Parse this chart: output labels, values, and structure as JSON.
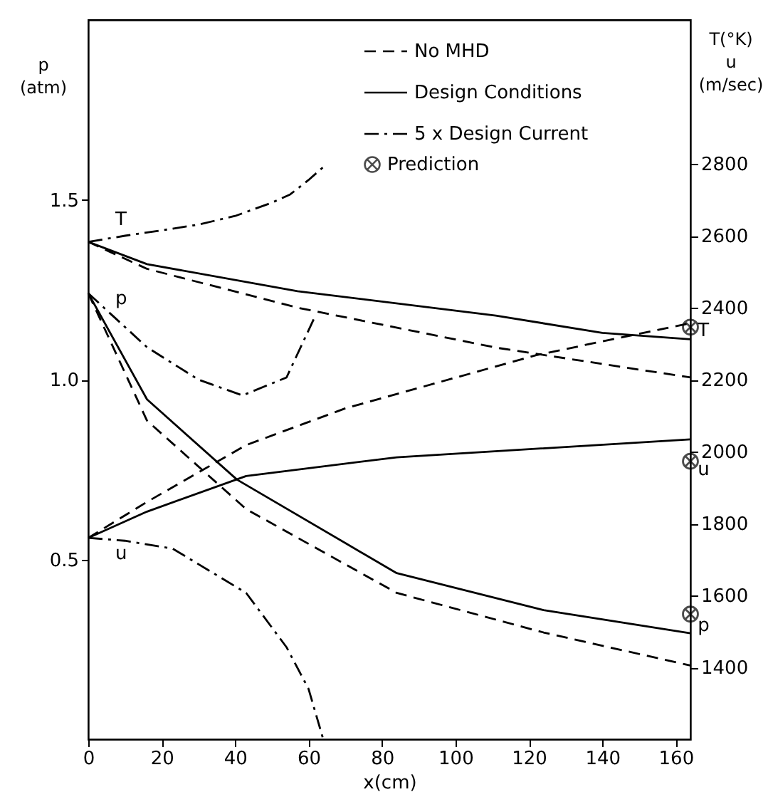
{
  "chart_data": {
    "type": "line",
    "xlabel": "x(cm)",
    "ylabel": "p (atm)",
    "y2label": "T(°K) u (m/sec)",
    "xlim": [
      0,
      164
    ],
    "xticks": [
      0,
      20,
      40,
      60,
      80,
      100,
      120,
      140,
      160
    ],
    "ylim": [
      0,
      2
    ],
    "yticks": [
      0.5,
      {
        "value": 1,
        "label": "1.0"
      },
      1.5
    ],
    "y2lim": [
      1200,
      3200
    ],
    "y2ticks": [
      1400,
      1600,
      1800,
      2000,
      2200,
      2400,
      2600,
      2800
    ],
    "grid": false,
    "legend": "top right",
    "series": [
      {
        "name": "No MHD",
        "color": "#000000",
        "line_style": "dashed",
        "axis": "y2",
        "x": [
          0,
          16,
          57,
          111,
          164
        ],
        "values": [
          2583,
          2508,
          2400,
          2289,
          2206
        ]
      },
      {
        "color": "#000000",
        "line_style": "dashed",
        "axis": "y2",
        "x": [
          0,
          16,
          43,
          70,
          122,
          164
        ],
        "values": [
          1760,
          1860,
          2018,
          2120,
          2268,
          2357
        ]
      },
      {
        "color": "#000000",
        "line_style": "dashed",
        "x": [
          0,
          16,
          43,
          84,
          124,
          164
        ],
        "values": [
          1.24,
          0.886,
          0.64,
          0.407,
          0.297,
          0.205
        ]
      },
      {
        "name": "Design Conditions",
        "color": "#000000",
        "line_style": "solid",
        "axis": "y2",
        "x": [
          0,
          16,
          57,
          111,
          140,
          164
        ],
        "values": [
          2583,
          2521,
          2446,
          2378,
          2330,
          2312
        ]
      },
      {
        "color": "#000000",
        "line_style": "solid",
        "axis": "y2",
        "x": [
          0,
          16,
          43,
          84,
          164
        ],
        "values": [
          1760,
          1833,
          1932,
          1984,
          2034
        ]
      },
      {
        "color": "#000000",
        "line_style": "solid",
        "x": [
          0,
          16,
          40.5,
          84,
          124,
          164
        ],
        "values": [
          1.24,
          0.945,
          0.722,
          0.462,
          0.359,
          0.295
        ]
      },
      {
        "name": "5 x Design Current",
        "color": "#000000",
        "line_style": "dashdot",
        "axis": "y2",
        "x": [
          0,
          10,
          20,
          30,
          40,
          50,
          55,
          60,
          65
        ],
        "values": [
          2583,
          2600,
          2615,
          2631,
          2655,
          2692,
          2715,
          2755,
          2800
        ]
      },
      {
        "color": "#000000",
        "line_style": "dashdot",
        "axis": "y2",
        "x": [
          0,
          10,
          23,
          43,
          54,
          60,
          64
        ],
        "values": [
          1760,
          1752,
          1730,
          1607,
          1456,
          1340,
          1200
        ]
      },
      {
        "color": "#000000",
        "line_style": "dashdot",
        "x": [
          0,
          16,
          30,
          42,
          54,
          61.5
        ],
        "values": [
          1.24,
          1.09,
          1.0,
          0.956,
          1.006,
          1.17
        ]
      },
      {
        "name": "Prediction",
        "color": "#000000",
        "type": "scatter",
        "marker": "cross",
        "axis": "y2",
        "x": [
          164,
          164
        ],
        "values": [
          2346,
          1973
        ]
      },
      {
        "color": "#000000",
        "type": "scatter",
        "marker": "cross",
        "x": [
          164
        ],
        "values": [
          0.348
        ]
      }
    ],
    "annotations": [
      "T",
      "p",
      "u",
      "T",
      "u",
      "p"
    ]
  }
}
